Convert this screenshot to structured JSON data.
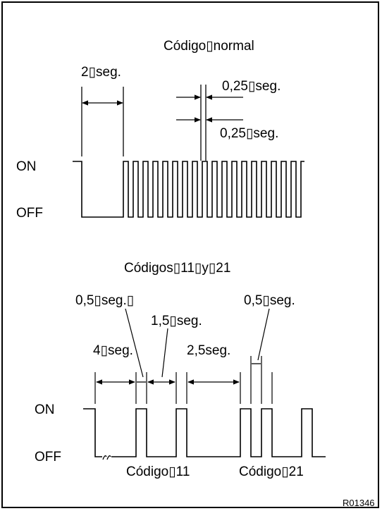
{
  "diagram_id": "R01346",
  "normal": {
    "title": "Código▯normal",
    "label_2seg": "2▯seg.",
    "label_025_top": "0,25▯seg.",
    "label_025_bottom": "0,25▯seg.",
    "on_label": "ON",
    "off_label": "OFF"
  },
  "codes": {
    "title": "Códigos▯11▯y▯21",
    "label_05_left": "0,5▯seg.▯",
    "label_15": "1,5▯seg.",
    "label_05_right": "0,5▯seg.",
    "label_4seg": "4▯seg.",
    "label_25": "2,5seg.",
    "on_label": "ON",
    "off_label": "OFF",
    "code11_label": "Código▯11",
    "code21_label": "Código▯21"
  }
}
